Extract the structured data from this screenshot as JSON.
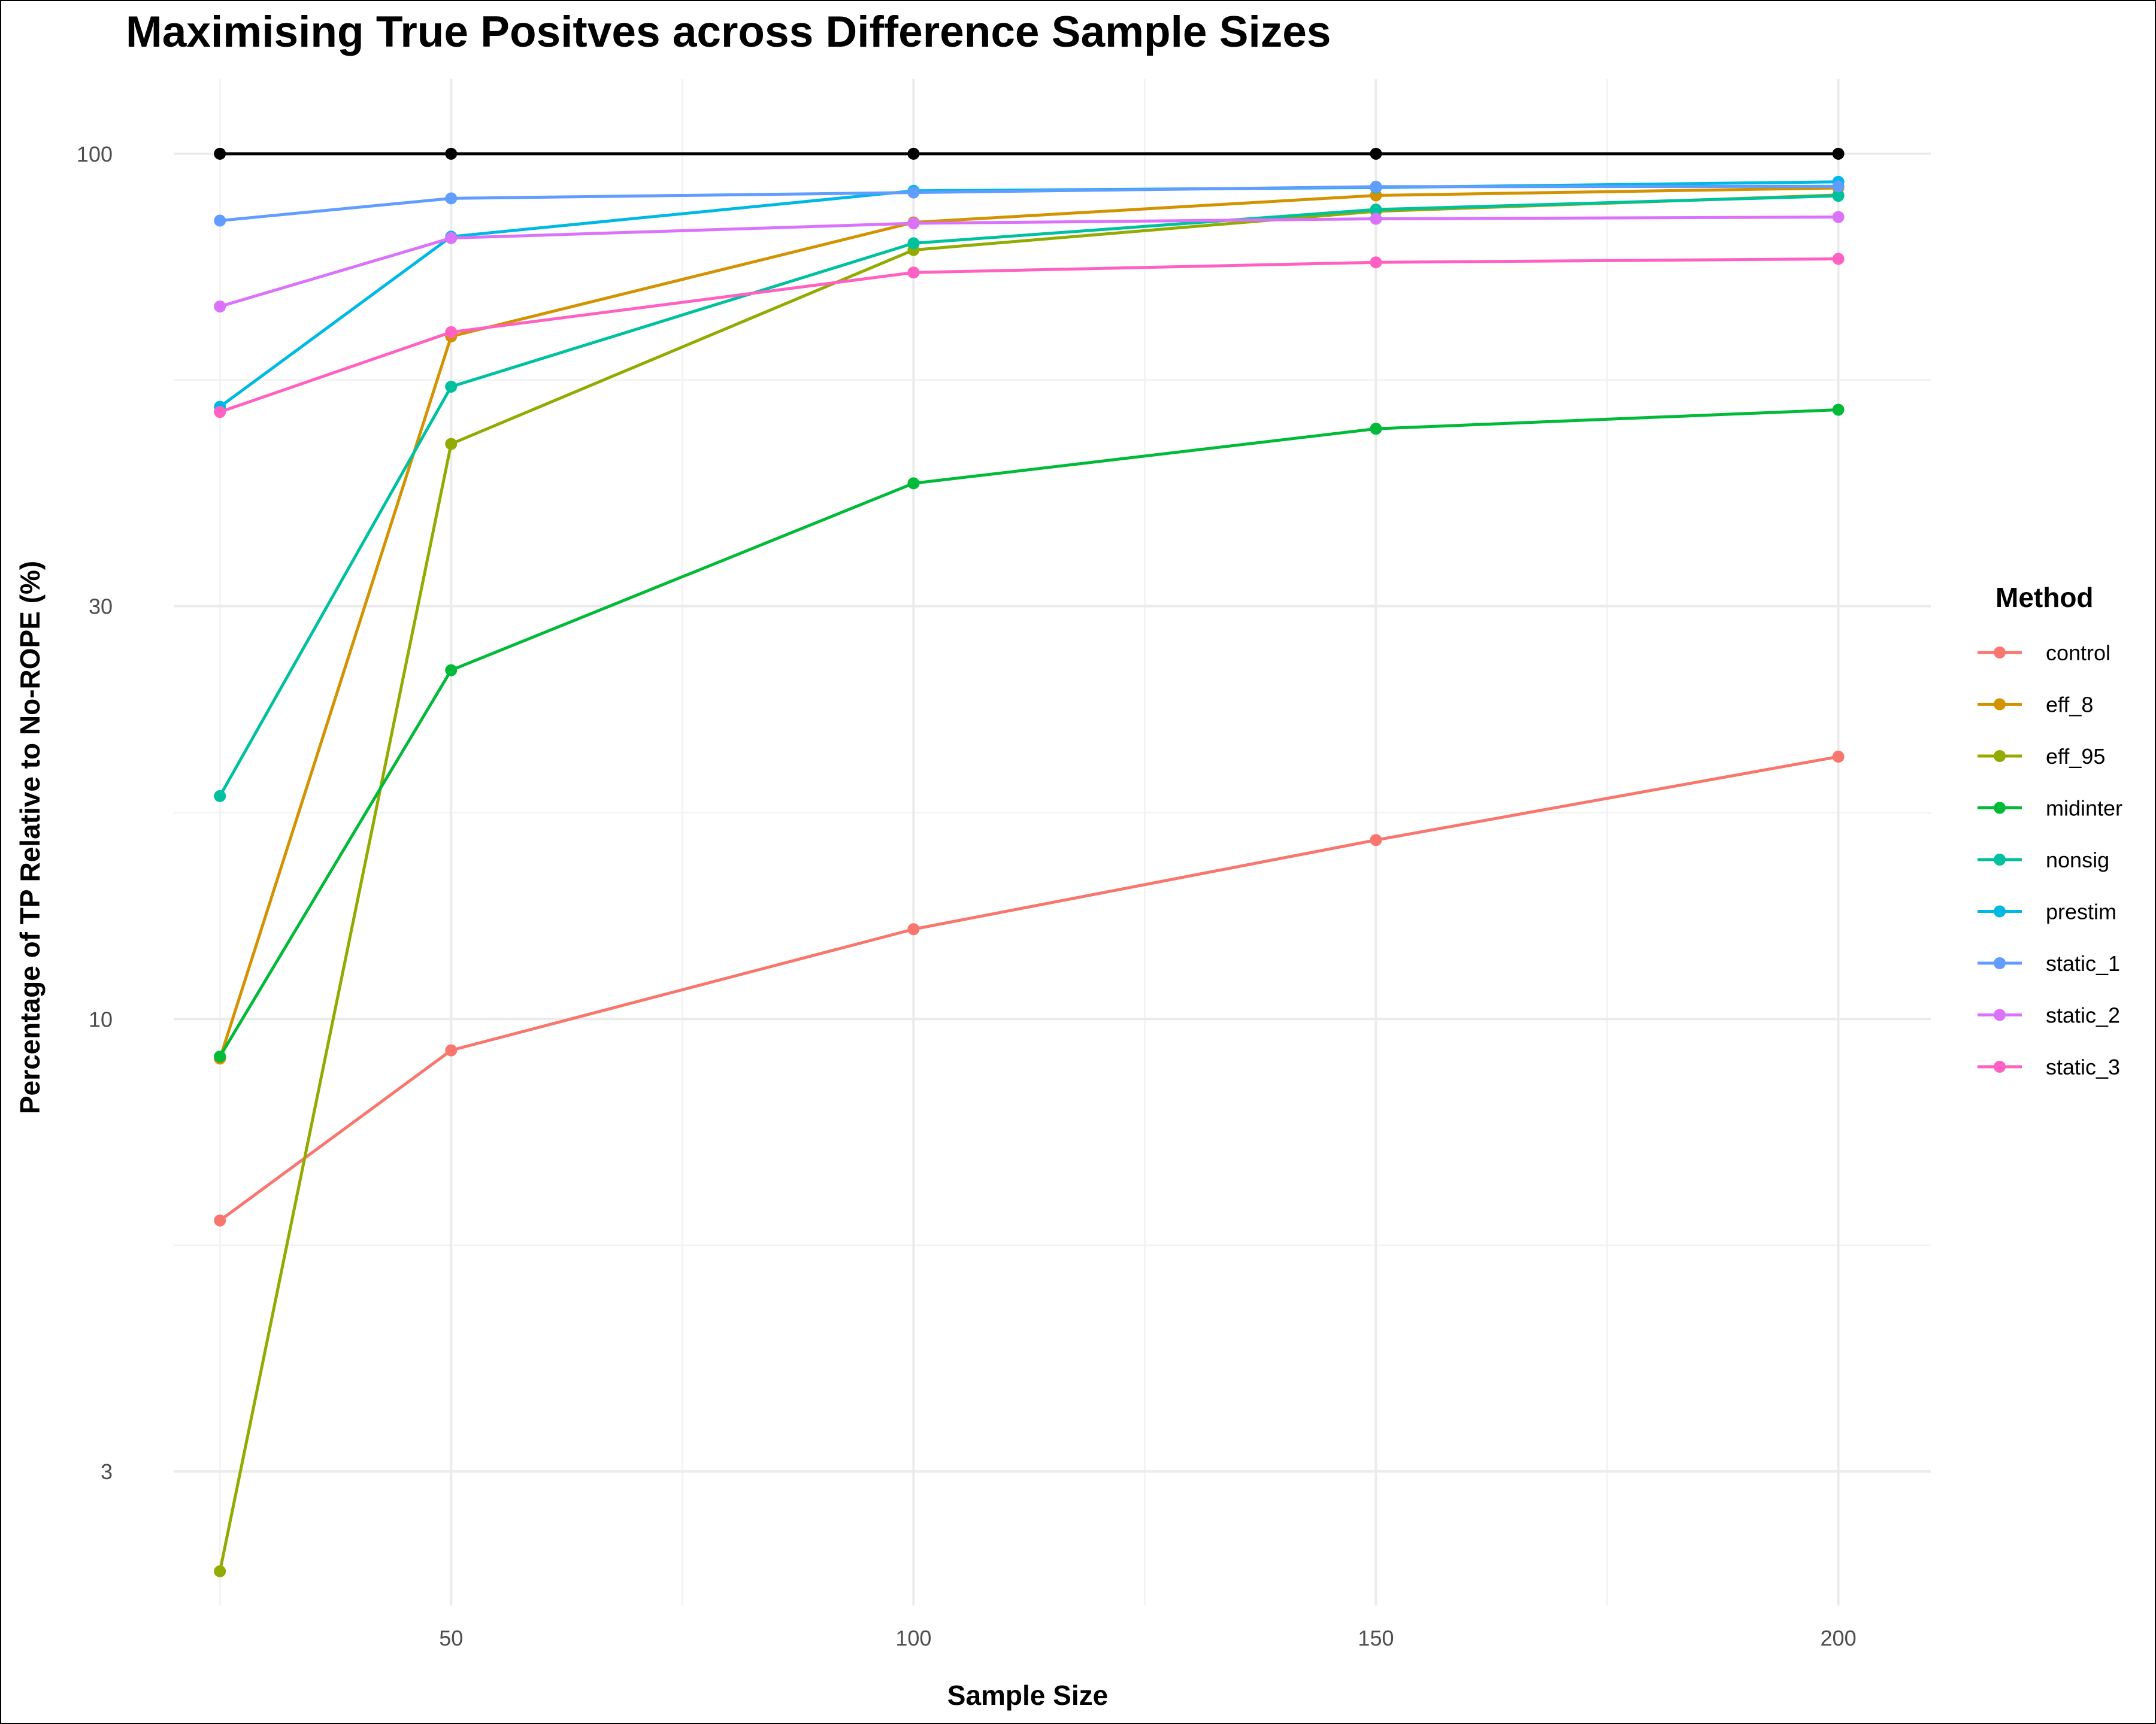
{
  "chart_data": {
    "type": "line",
    "title": "Maximising True Positves across Difference Sample Sizes",
    "xlabel": "Sample Size",
    "ylabel": "Percentage of TP Relative to No-ROPE (%)",
    "y_scale": "log10",
    "xlim": [
      20,
      210
    ],
    "ylim": [
      2.1,
      122
    ],
    "x_ticks": [
      50,
      100,
      150,
      200
    ],
    "y_ticks": [
      3,
      10,
      30,
      100
    ],
    "grid": true,
    "legend_title": "Method",
    "legend_position": "right",
    "x": [
      25,
      50,
      100,
      150,
      200
    ],
    "reference_series": {
      "name": "",
      "color": "#000000",
      "values": [
        100,
        100,
        100,
        100,
        100
      ]
    },
    "series": [
      {
        "name": "control",
        "color": "#F8766D",
        "values": [
          5.85,
          9.2,
          12.7,
          16.1,
          20.1
        ]
      },
      {
        "name": "eff_8",
        "color": "#D39200",
        "values": [
          9.0,
          61.5,
          83.3,
          89.5,
          91.3
        ]
      },
      {
        "name": "eff_95",
        "color": "#93AA00",
        "values": [
          2.3,
          46.2,
          77.4,
          85.8,
          89.6
        ]
      },
      {
        "name": "midinter",
        "color": "#00BA38",
        "values": [
          9.05,
          25.3,
          41.6,
          48.1,
          50.6
        ]
      },
      {
        "name": "nonsig",
        "color": "#00C19F",
        "values": [
          18.1,
          53.8,
          78.8,
          86.2,
          89.4
        ]
      },
      {
        "name": "prestim",
        "color": "#00B9E3",
        "values": [
          51.0,
          80.2,
          90.6,
          91.4,
          92.8
        ]
      },
      {
        "name": "static_1",
        "color": "#619CFF",
        "values": [
          83.7,
          88.8,
          90.2,
          91.6,
          91.7
        ]
      },
      {
        "name": "static_2",
        "color": "#DB72FB",
        "values": [
          66.6,
          79.9,
          83.1,
          84.1,
          84.5
        ]
      },
      {
        "name": "static_3",
        "color": "#FF61C3",
        "values": [
          50.3,
          62.2,
          72.9,
          74.9,
          75.6
        ]
      }
    ]
  }
}
